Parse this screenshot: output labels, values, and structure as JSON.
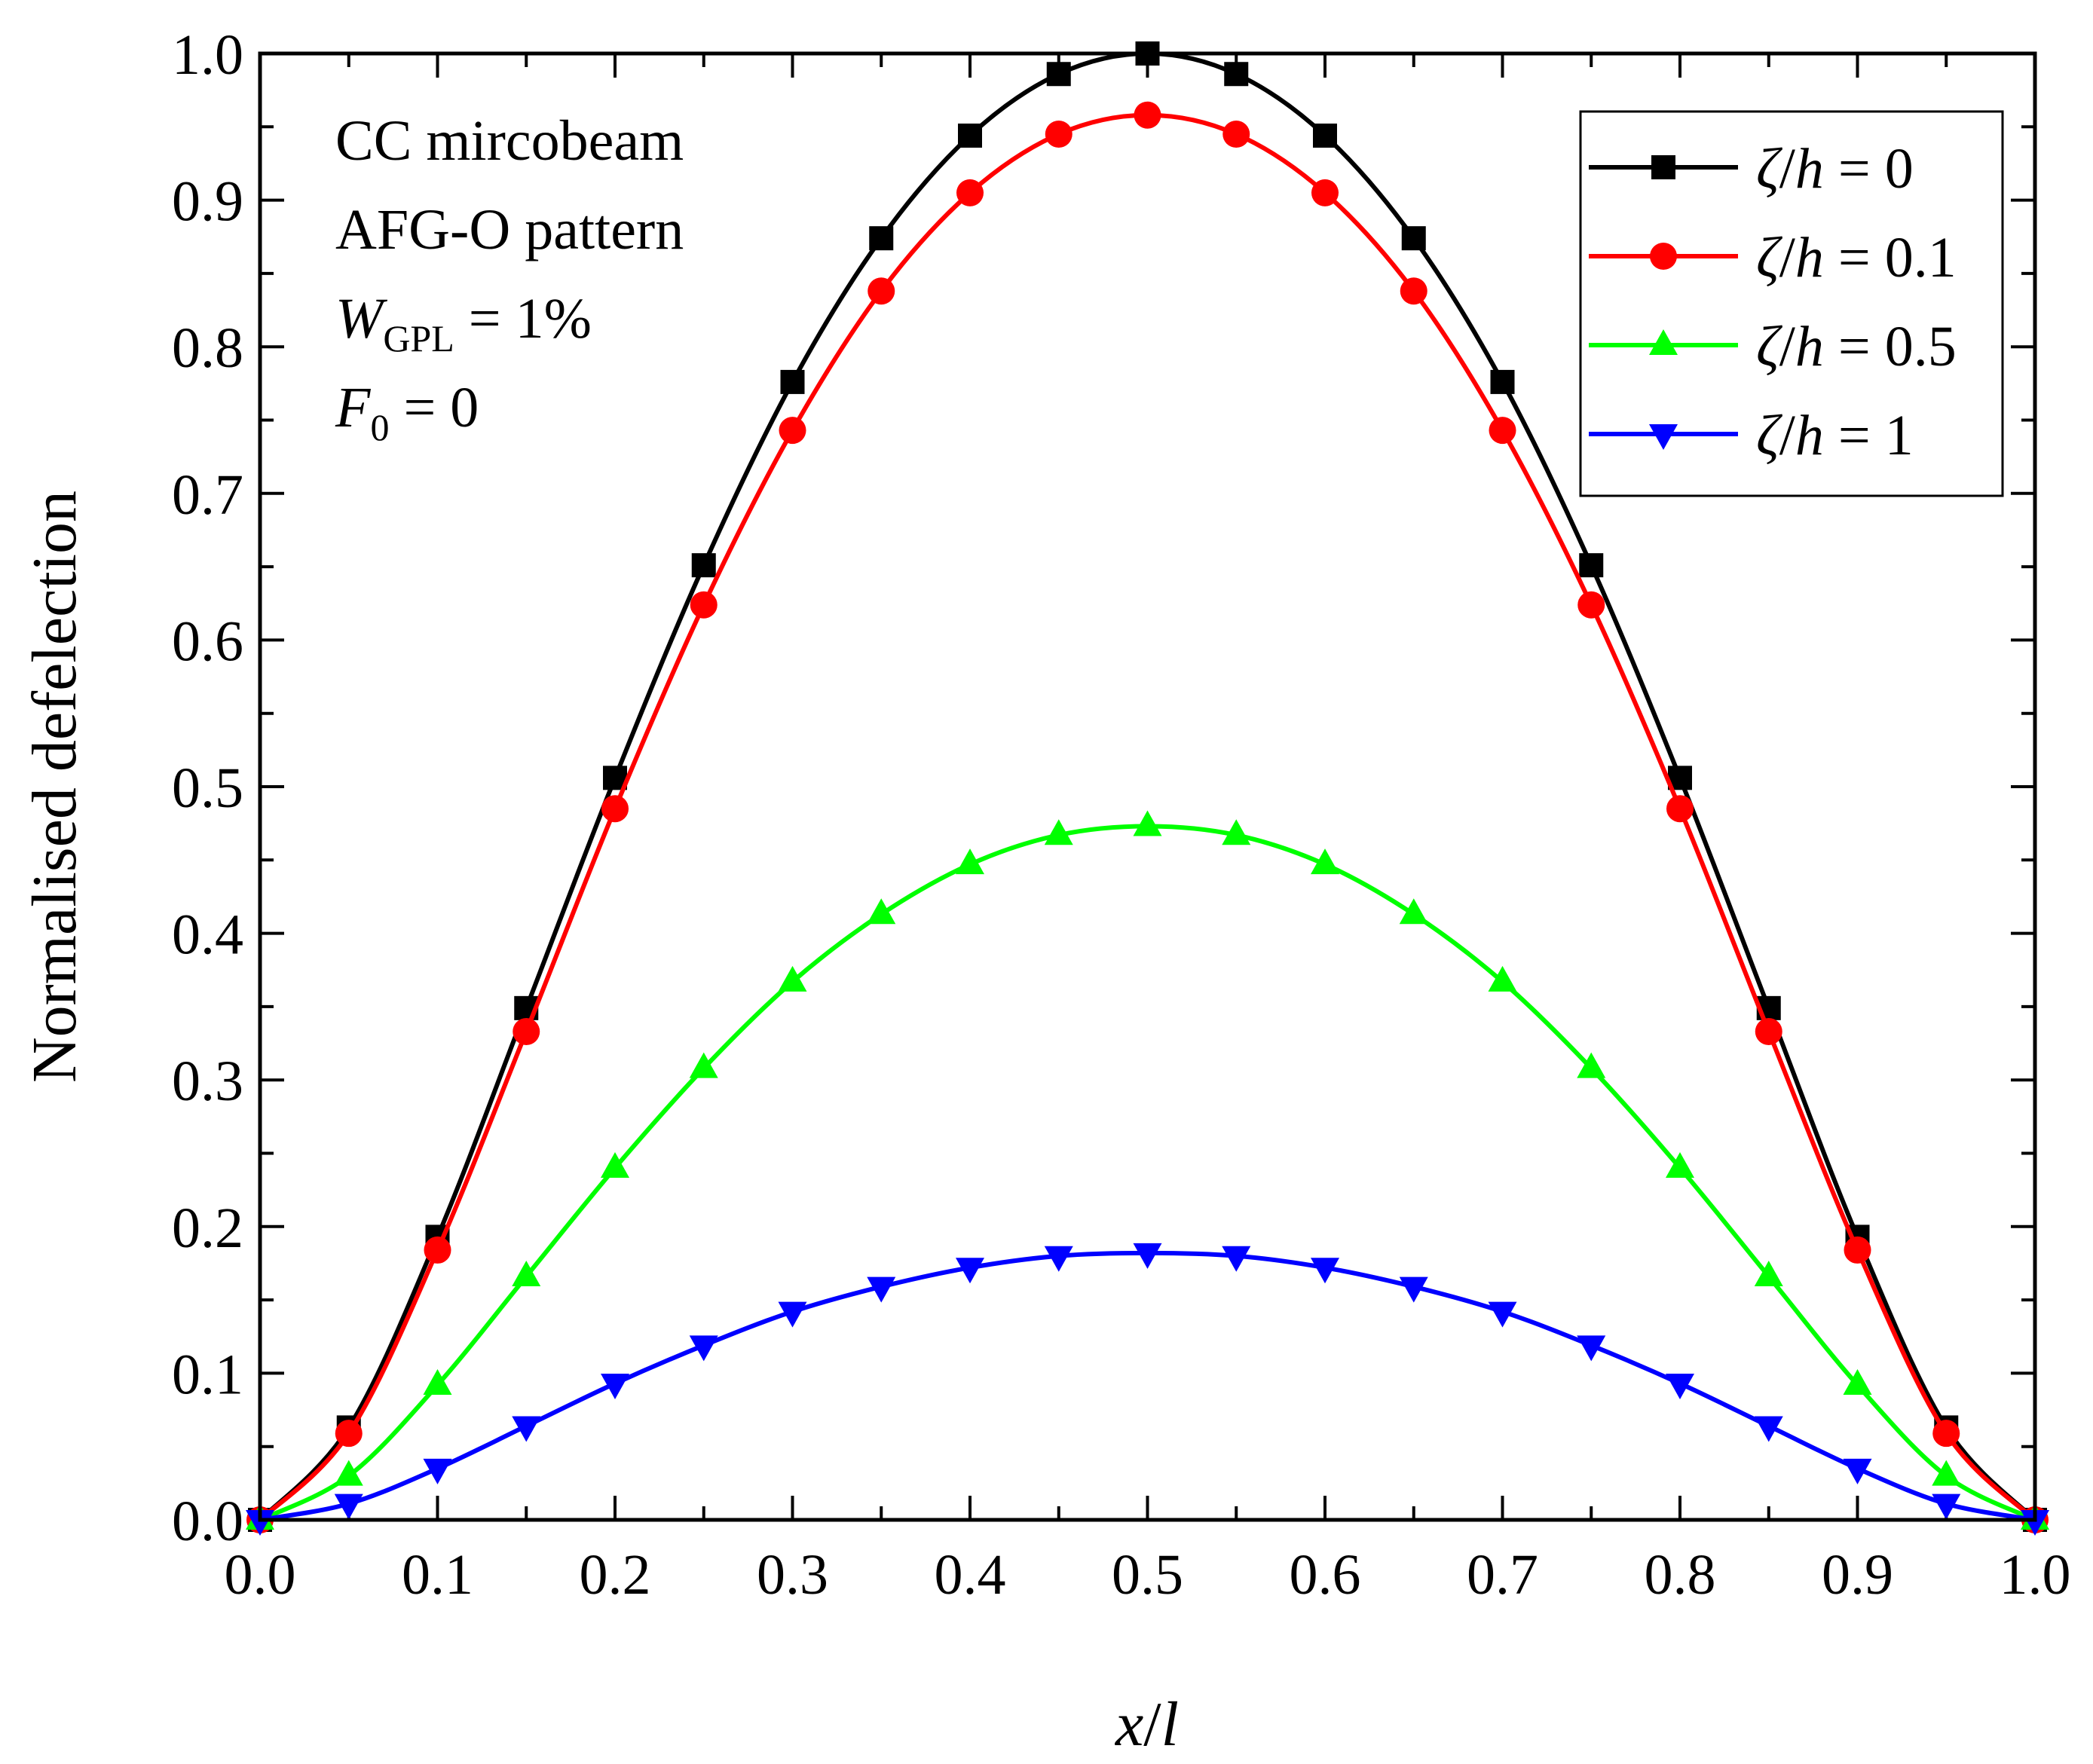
{
  "chart_data": {
    "type": "line",
    "title": "",
    "xlabel": {
      "var": "x",
      "sep": "/",
      "den": "l"
    },
    "ylabel": "Normalised defelection",
    "xlim": [
      0.0,
      1.0
    ],
    "ylim": [
      0.0,
      1.0
    ],
    "grid": false,
    "legend_position": "top-right",
    "xticks": [
      "0.0",
      "0.1",
      "0.2",
      "0.3",
      "0.4",
      "0.5",
      "0.6",
      "0.7",
      "0.8",
      "0.9",
      "1.0"
    ],
    "yticks": [
      "0.0",
      "0.1",
      "0.2",
      "0.3",
      "0.4",
      "0.5",
      "0.6",
      "0.7",
      "0.8",
      "0.9",
      "1.0"
    ],
    "annotations": {
      "line1": "CC mircobeam",
      "line2": "AFG-O pattern",
      "line3": {
        "sym": "W",
        "sub": "GPL",
        "rest": " = 1%"
      },
      "line4": {
        "sym": "F",
        "sub": "0",
        "rest": " = 0"
      }
    },
    "x": [
      0.0,
      0.05,
      0.1,
      0.15,
      0.2,
      0.25,
      0.3,
      0.35,
      0.4,
      0.45,
      0.5,
      0.55,
      0.6,
      0.65,
      0.7,
      0.75,
      0.8,
      0.85,
      0.9,
      0.95,
      1.0
    ],
    "series": [
      {
        "name": "ζ/h = 0",
        "sym": "ζ",
        "den": "h",
        "val": "0",
        "color": "#000000",
        "marker": "square",
        "values": [
          0.0,
          0.063,
          0.193,
          0.349,
          0.506,
          0.651,
          0.776,
          0.874,
          0.944,
          0.986,
          1.0,
          0.986,
          0.944,
          0.874,
          0.776,
          0.651,
          0.506,
          0.349,
          0.193,
          0.063,
          0.0
        ]
      },
      {
        "name": "ζ/h = 0.1",
        "sym": "ζ",
        "den": "h",
        "val": "0.1",
        "color": "#ff0000",
        "marker": "circle",
        "values": [
          0.0,
          0.059,
          0.184,
          0.333,
          0.485,
          0.624,
          0.743,
          0.838,
          0.905,
          0.945,
          0.958,
          0.945,
          0.905,
          0.838,
          0.743,
          0.624,
          0.485,
          0.333,
          0.184,
          0.059,
          0.0
        ]
      },
      {
        "name": "ζ/h = 0.5",
        "sym": "ζ",
        "den": "h",
        "val": "0.5",
        "color": "#00ff00",
        "marker": "triangle-up",
        "values": [
          0.0,
          0.03,
          0.092,
          0.166,
          0.24,
          0.308,
          0.367,
          0.413,
          0.447,
          0.467,
          0.473,
          0.467,
          0.447,
          0.413,
          0.367,
          0.308,
          0.24,
          0.166,
          0.092,
          0.03,
          0.0
        ]
      },
      {
        "name": "ζ/h = 1",
        "sym": "ζ",
        "den": "h",
        "val": "1",
        "color": "#0000ff",
        "marker": "triangle-down",
        "values": [
          0.0,
          0.011,
          0.035,
          0.064,
          0.093,
          0.119,
          0.142,
          0.159,
          0.172,
          0.18,
          0.182,
          0.18,
          0.172,
          0.159,
          0.142,
          0.119,
          0.093,
          0.064,
          0.035,
          0.011,
          0.0
        ]
      }
    ]
  }
}
